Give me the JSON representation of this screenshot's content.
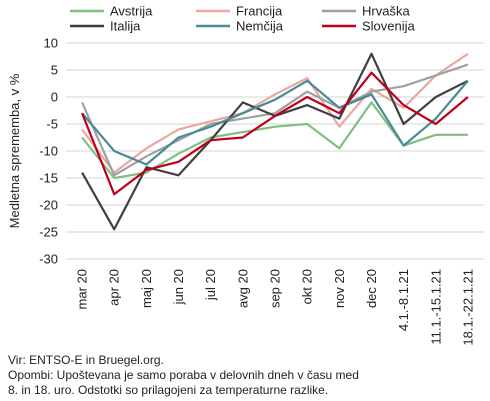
{
  "chart_data": {
    "type": "line",
    "ylabel": "Medletna sprememba, v %",
    "xlabel": "",
    "ylim": [
      -30,
      10
    ],
    "yticks": [
      10,
      5,
      0,
      -5,
      -10,
      -15,
      -20,
      -25,
      -30
    ],
    "grid": "horizontal",
    "legend_position": "top",
    "categories": [
      "mar 20",
      "apr 20",
      "maj 20",
      "jun 20",
      "jul 20",
      "avg 20",
      "sep 20",
      "okt 20",
      "nov 20",
      "dec 20",
      "4.1.-8.1.21",
      "11.1.-15.1.21",
      "18.1.-22.1.21"
    ],
    "series": [
      {
        "name": "Avstrija",
        "color": "#7fbf7f",
        "values": [
          -7.5,
          -15,
          -14,
          -10.5,
          -7.5,
          -6.5,
          -5.5,
          -5,
          -9.5,
          -1,
          -9,
          -7,
          -7
        ]
      },
      {
        "name": "Francija",
        "color": "#e8a8a0",
        "values": [
          -6,
          -14,
          -9.5,
          -6,
          -4.5,
          -3,
          0.5,
          3.5,
          -5.5,
          1.5,
          -2,
          4,
          8
        ]
      },
      {
        "name": "Hrvaška",
        "color": "#a0a0a0",
        "values": [
          -1,
          -14.5,
          -11,
          -8,
          -5,
          -4,
          -3,
          1,
          -2,
          1,
          2,
          4,
          6
        ]
      },
      {
        "name": "Italija",
        "color": "#404040",
        "values": [
          -14,
          -24.5,
          -13,
          -14.5,
          -8,
          -1,
          -3.5,
          -1.5,
          -4,
          8,
          -5,
          0,
          3
        ]
      },
      {
        "name": "Nemčija",
        "color": "#4a8a96",
        "values": [
          -3,
          -10,
          -12.5,
          -7.5,
          -5.5,
          -3,
          -0.5,
          3,
          -2,
          0.5,
          -9,
          -4,
          3
        ]
      },
      {
        "name": "Slovenija",
        "color": "#c0001a",
        "values": [
          -3,
          -18,
          -13.5,
          -12,
          -8,
          -7.5,
          -3.5,
          0,
          -3,
          4.5,
          -1.5,
          -5,
          0
        ]
      }
    ]
  },
  "notes": {
    "source": "Vir: ENTSO-E in Bruegel.org.",
    "note_line1": "Opombi: Upoštevana je samo poraba v delovnih dneh v času med",
    "note_line2": "8. in 18. uro. Odstotki so prilagojeni za temperaturne razlike."
  }
}
